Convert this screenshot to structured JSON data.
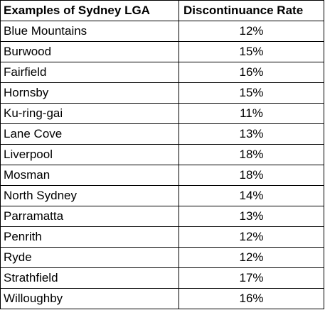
{
  "table": {
    "headers": [
      "Examples of Sydney LGA",
      "Discontinuance Rate"
    ],
    "rows": [
      {
        "lga": "Blue Mountains",
        "rate": "12%"
      },
      {
        "lga": "Burwood",
        "rate": "15%"
      },
      {
        "lga": "Fairfield",
        "rate": "16%"
      },
      {
        "lga": "Hornsby",
        "rate": "15%"
      },
      {
        "lga": "Ku-ring-gai",
        "rate": "11%"
      },
      {
        "lga": "Lane Cove",
        "rate": "13%"
      },
      {
        "lga": "Liverpool",
        "rate": "18%"
      },
      {
        "lga": "Mosman",
        "rate": "18%"
      },
      {
        "lga": "North Sydney",
        "rate": "14%"
      },
      {
        "lga": "Parramatta",
        "rate": "13%"
      },
      {
        "lga": "Penrith",
        "rate": "12%"
      },
      {
        "lga": "Ryde",
        "rate": "12%"
      },
      {
        "lga": "Strathfield",
        "rate": "17%"
      },
      {
        "lga": "Willoughby",
        "rate": "16%"
      }
    ]
  }
}
